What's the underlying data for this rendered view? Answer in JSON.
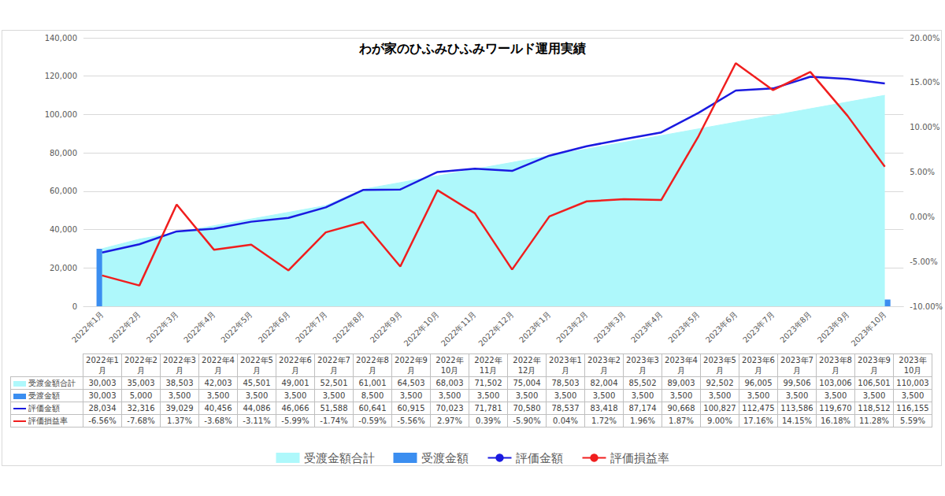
{
  "chart_data": {
    "type": "line",
    "title": "わが家のひふみひふみワールド運用実績",
    "categories": [
      "2022年1月",
      "2022年2月",
      "2022年3月",
      "2022年4月",
      "2022年5月",
      "2022年6月",
      "2022年7月",
      "2022年8月",
      "2022年9月",
      "2022年10月",
      "2022年11月",
      "2022年12月",
      "2023年1月",
      "2023年2月",
      "2023年3月",
      "2023年4月",
      "2023年5月",
      "2023年6月",
      "2023年7月",
      "2023年8月",
      "2023年9月",
      "2023年10月"
    ],
    "series": [
      {
        "name": "受渡金額合計",
        "type": "area",
        "color": "#aef8fb",
        "values": [
          30003,
          35003,
          38503,
          42003,
          45501,
          49001,
          52501,
          61001,
          64503,
          68003,
          71502,
          75004,
          78503,
          82004,
          85502,
          89003,
          92502,
          96005,
          99506,
          103006,
          106501,
          110003
        ],
        "value_labels": [
          "30,003",
          "35,003",
          "38,503",
          "42,003",
          "45,501",
          "49,001",
          "52,501",
          "61,001",
          "64,503",
          "68,003",
          "71,502",
          "75,004",
          "78,503",
          "82,004",
          "85,502",
          "89,003",
          "92,502",
          "96,005",
          "99,506",
          "103,006",
          "106,501",
          "110,003"
        ]
      },
      {
        "name": "受渡金額",
        "type": "bar",
        "color": "#3b8ef0",
        "values": [
          30003,
          5000,
          3500,
          3500,
          3500,
          3500,
          3500,
          8500,
          3500,
          3500,
          3500,
          3500,
          3500,
          3500,
          3500,
          3500,
          3500,
          3500,
          3500,
          3500,
          3500,
          3500
        ],
        "value_labels": [
          "30,003",
          "5,000",
          "3,500",
          "3,500",
          "3,500",
          "3,500",
          "3,500",
          "8,500",
          "3,500",
          "3,500",
          "3,500",
          "3,500",
          "3,500",
          "3,500",
          "3,500",
          "3,500",
          "3,500",
          "3,500",
          "3,500",
          "3,500",
          "3,500",
          "3,500"
        ]
      },
      {
        "name": "評価金額",
        "color": "#1a1ae0",
        "values": [
          28034,
          32316,
          39029,
          40456,
          44086,
          46066,
          51588,
          60641,
          60915,
          70023,
          71781,
          70580,
          78537,
          83418,
          87174,
          90668,
          100827,
          112475,
          113586,
          119670,
          118512,
          116155
        ],
        "value_labels": [
          "28,034",
          "32,316",
          "39,029",
          "40,456",
          "44,086",
          "46,066",
          "51,588",
          "60,641",
          "60,915",
          "70,023",
          "71,781",
          "70,580",
          "78,537",
          "83,418",
          "87,174",
          "90,668",
          "100,827",
          "112,475",
          "113,586",
          "119,670",
          "118,512",
          "116,155"
        ]
      },
      {
        "name": "評価損益率",
        "color": "#f01e1e",
        "axis": "y2",
        "values": [
          -6.56,
          -7.68,
          1.37,
          -3.68,
          -3.11,
          -5.99,
          -1.74,
          -0.59,
          -5.56,
          2.97,
          0.39,
          -5.9,
          0.04,
          1.72,
          1.96,
          1.87,
          9.0,
          17.16,
          14.15,
          16.18,
          11.28,
          5.59
        ],
        "value_labels": [
          "-6.56%",
          "-7.68%",
          "1.37%",
          "-3.68%",
          "-3.11%",
          "-5.99%",
          "-1.74%",
          "-0.59%",
          "-5.56%",
          "2.97%",
          "0.39%",
          "-5.90%",
          "0.04%",
          "1.72%",
          "1.96%",
          "1.87%",
          "9.00%",
          "17.16%",
          "14.15%",
          "16.18%",
          "11.28%",
          "5.59%"
        ]
      }
    ],
    "ylim": [
      0,
      140000
    ],
    "yticks": [
      0,
      {
        "value": 20000,
        "label": "20,000"
      },
      {
        "value": 40000,
        "label": "40,000"
      },
      {
        "value": 60000,
        "label": "60,000"
      },
      {
        "value": 80000,
        "label": "80,000"
      },
      {
        "value": 100000,
        "label": "100,000"
      },
      {
        "value": 120000,
        "label": "120,000"
      },
      {
        "value": 140000,
        "label": "140,000"
      }
    ],
    "y2lim": [
      -10,
      20
    ],
    "y2ticks": [
      {
        "value": -10,
        "label": "-10.00%"
      },
      {
        "value": -5,
        "label": "-5.00%"
      },
      {
        "value": 0,
        "label": "0.00%"
      },
      {
        "value": 5,
        "label": "5.00%"
      },
      {
        "value": 10,
        "label": "10.00%"
      },
      {
        "value": 15,
        "label": "15.00%"
      },
      {
        "value": 20,
        "label": "20.00%"
      }
    ],
    "grid": true,
    "legend": "bottom"
  }
}
